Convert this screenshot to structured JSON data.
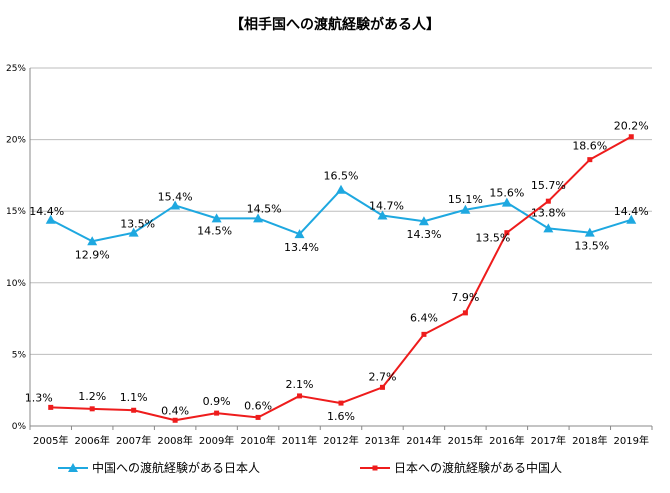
{
  "chart_data": {
    "type": "line",
    "title": "【相手国への渡航経験がある人】",
    "xlabel": "",
    "ylabel": "",
    "categories": [
      "2005年",
      "2006年",
      "2007年",
      "2008年",
      "2009年",
      "2010年",
      "2011年",
      "2012年",
      "2013年",
      "2014年",
      "2015年",
      "2016年",
      "2017年",
      "2018年",
      "2019年"
    ],
    "ylim": [
      0,
      25
    ],
    "yticks": [
      "0%",
      "5%",
      "10%",
      "15%",
      "20%",
      "25%"
    ],
    "grid": true,
    "legend_position": "bottom",
    "series": [
      {
        "name": "中国への渡航経験がある日本人",
        "color": "#1ea8e0",
        "marker": "triangle",
        "values": [
          14.4,
          12.9,
          13.5,
          15.4,
          14.5,
          14.5,
          13.4,
          16.5,
          14.7,
          14.3,
          15.1,
          15.6,
          13.8,
          13.5,
          14.4
        ],
        "labels": [
          "14.4%",
          "12.9%",
          "13.5%",
          "15.4%",
          "14.5%",
          "14.5%",
          "13.4%",
          "16.5%",
          "14.7%",
          "14.3%",
          "15.1%",
          "15.6%",
          "13.8%",
          "13.5%",
          "14.4%"
        ]
      },
      {
        "name": "日本への渡航経験がある中国人",
        "color": "#ee1c1c",
        "marker": "square",
        "values": [
          1.3,
          1.2,
          1.1,
          0.4,
          0.9,
          0.6,
          2.1,
          1.6,
          2.7,
          6.4,
          7.9,
          13.5,
          15.7,
          18.6,
          20.2
        ],
        "labels": [
          "1.3%",
          "1.2%",
          "1.1%",
          "0.4%",
          "0.9%",
          "0.6%",
          "2.1%",
          "1.6%",
          "2.7%",
          "6.4%",
          "7.9%",
          "13.5%",
          "15.7%",
          "18.6%",
          "20.2%"
        ]
      }
    ]
  }
}
